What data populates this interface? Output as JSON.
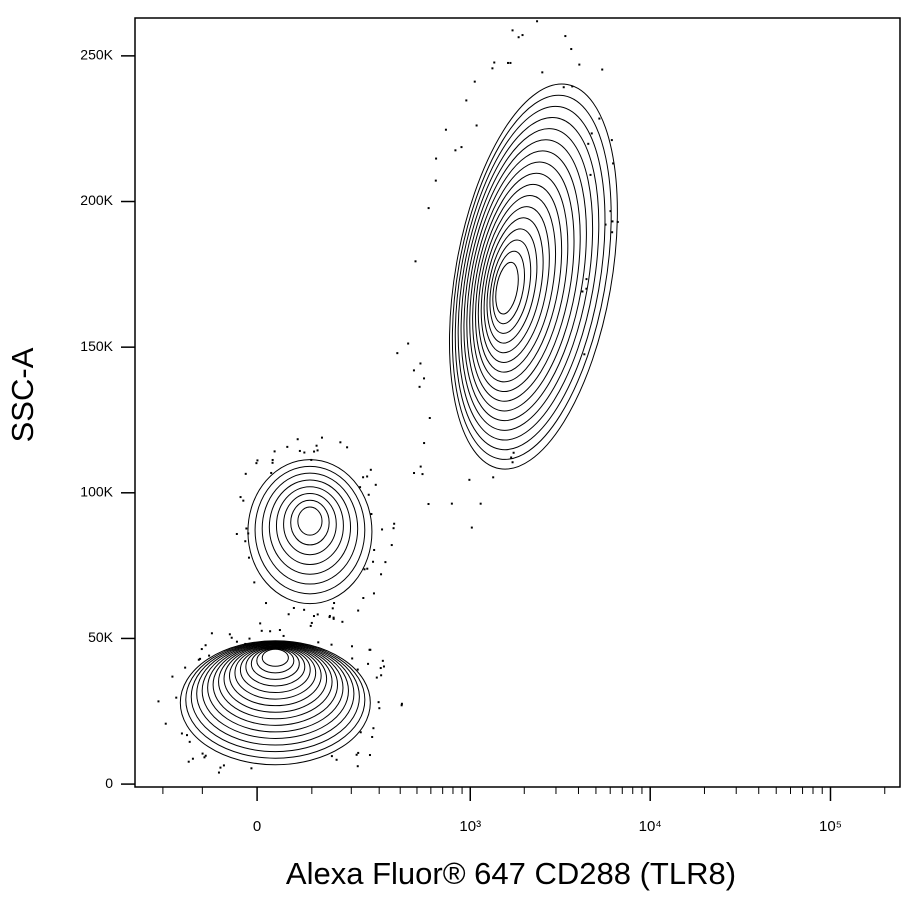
{
  "chart_data": {
    "type": "contour",
    "xlabel": "Alexa Fluor® 647  CD288 (TLR8)",
    "ylabel": "SSC-A",
    "xscale": "biexponential",
    "xlim": [
      -300,
      243000
    ],
    "ylim": [
      -1000,
      263000
    ],
    "xticks": [
      0,
      {
        "value": 1000,
        "label": "10³"
      },
      {
        "value": 10000,
        "label": "10⁴"
      },
      {
        "value": 100000,
        "label": "10⁵"
      }
    ],
    "xminorticks": [
      -200,
      -100,
      100,
      200,
      300,
      400,
      500,
      600,
      700,
      800,
      900,
      2000,
      3000,
      4000,
      5000,
      6000,
      7000,
      8000,
      9000,
      20000,
      30000,
      40000,
      50000,
      60000,
      70000,
      80000,
      90000,
      200000
    ],
    "yticks": [
      0,
      {
        "value": 50000,
        "label": "50K"
      },
      {
        "value": 100000,
        "label": "100K"
      },
      {
        "value": 150000,
        "label": "150K"
      },
      {
        "value": 200000,
        "label": "200K"
      },
      {
        "value": 250000,
        "label": "250K"
      }
    ],
    "color": "#000000",
    "populations": [
      {
        "x": 31,
        "y": 44400
      },
      {
        "x": 96,
        "y": 90800
      },
      {
        "x": 1570,
        "y": 170000
      }
    ]
  }
}
